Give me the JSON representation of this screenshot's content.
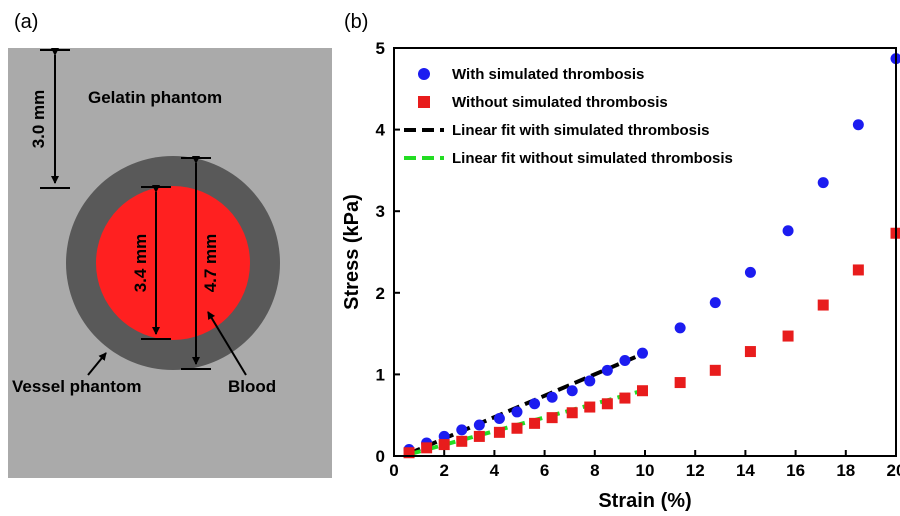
{
  "panels": {
    "a_label": "(a)",
    "b_label": "(b)"
  },
  "schematic": {
    "gelatin_label": "Gelatin phantom",
    "vessel_label": "Vessel phantom",
    "blood_label": "Blood",
    "dim_top": "3.0 mm",
    "dim_inner": "3.4 mm",
    "dim_outer": "4.7 mm",
    "colors": {
      "gelatin": "#aaaaaa",
      "vessel": "#595959",
      "blood": "#ff2020"
    }
  },
  "chart_data": {
    "type": "scatter",
    "xlabel": "Strain (%)",
    "ylabel": "Stress (kPa)",
    "xlim": [
      0,
      20
    ],
    "ylim": [
      0,
      5
    ],
    "xticks": [
      0,
      2,
      4,
      6,
      8,
      10,
      12,
      14,
      16,
      18,
      20
    ],
    "yticks": [
      0,
      1,
      2,
      3,
      4,
      5
    ],
    "legend_position": "top-left",
    "series": [
      {
        "name": "With simulated thrombosis",
        "marker": "circle",
        "color": "#1c1cf0",
        "x": [
          0.6,
          1.3,
          2.0,
          2.7,
          3.4,
          4.2,
          4.9,
          5.6,
          6.3,
          7.1,
          7.8,
          8.5,
          9.2,
          9.9,
          11.4,
          12.8,
          14.2,
          15.7,
          17.1,
          18.5,
          20.0
        ],
        "y": [
          0.08,
          0.16,
          0.24,
          0.32,
          0.38,
          0.46,
          0.54,
          0.64,
          0.72,
          0.8,
          0.92,
          1.05,
          1.17,
          1.26,
          1.57,
          1.88,
          2.25,
          2.76,
          3.35,
          4.06,
          4.87
        ]
      },
      {
        "name": "Without simulated thrombosis",
        "marker": "square",
        "color": "#e81c1c",
        "x": [
          0.6,
          1.3,
          2.0,
          2.7,
          3.4,
          4.2,
          4.9,
          5.6,
          6.3,
          7.1,
          7.8,
          8.5,
          9.2,
          9.9,
          11.4,
          12.8,
          14.2,
          15.7,
          17.1,
          18.5,
          20.0
        ],
        "y": [
          0.04,
          0.1,
          0.14,
          0.18,
          0.24,
          0.29,
          0.34,
          0.4,
          0.47,
          0.53,
          0.6,
          0.64,
          0.71,
          0.8,
          0.9,
          1.05,
          1.28,
          1.47,
          1.85,
          2.28,
          2.73
        ]
      },
      {
        "name": "Linear fit with simulated thrombosis",
        "marker": "dashed-line",
        "color": "#000000",
        "x": [
          0.6,
          9.9
        ],
        "y": [
          0.03,
          1.25
        ]
      },
      {
        "name": "Linear fit without simulated thrombosis",
        "marker": "dashed-line",
        "color": "#22dd22",
        "x": [
          0.6,
          9.9
        ],
        "y": [
          0.02,
          0.8
        ]
      }
    ]
  }
}
